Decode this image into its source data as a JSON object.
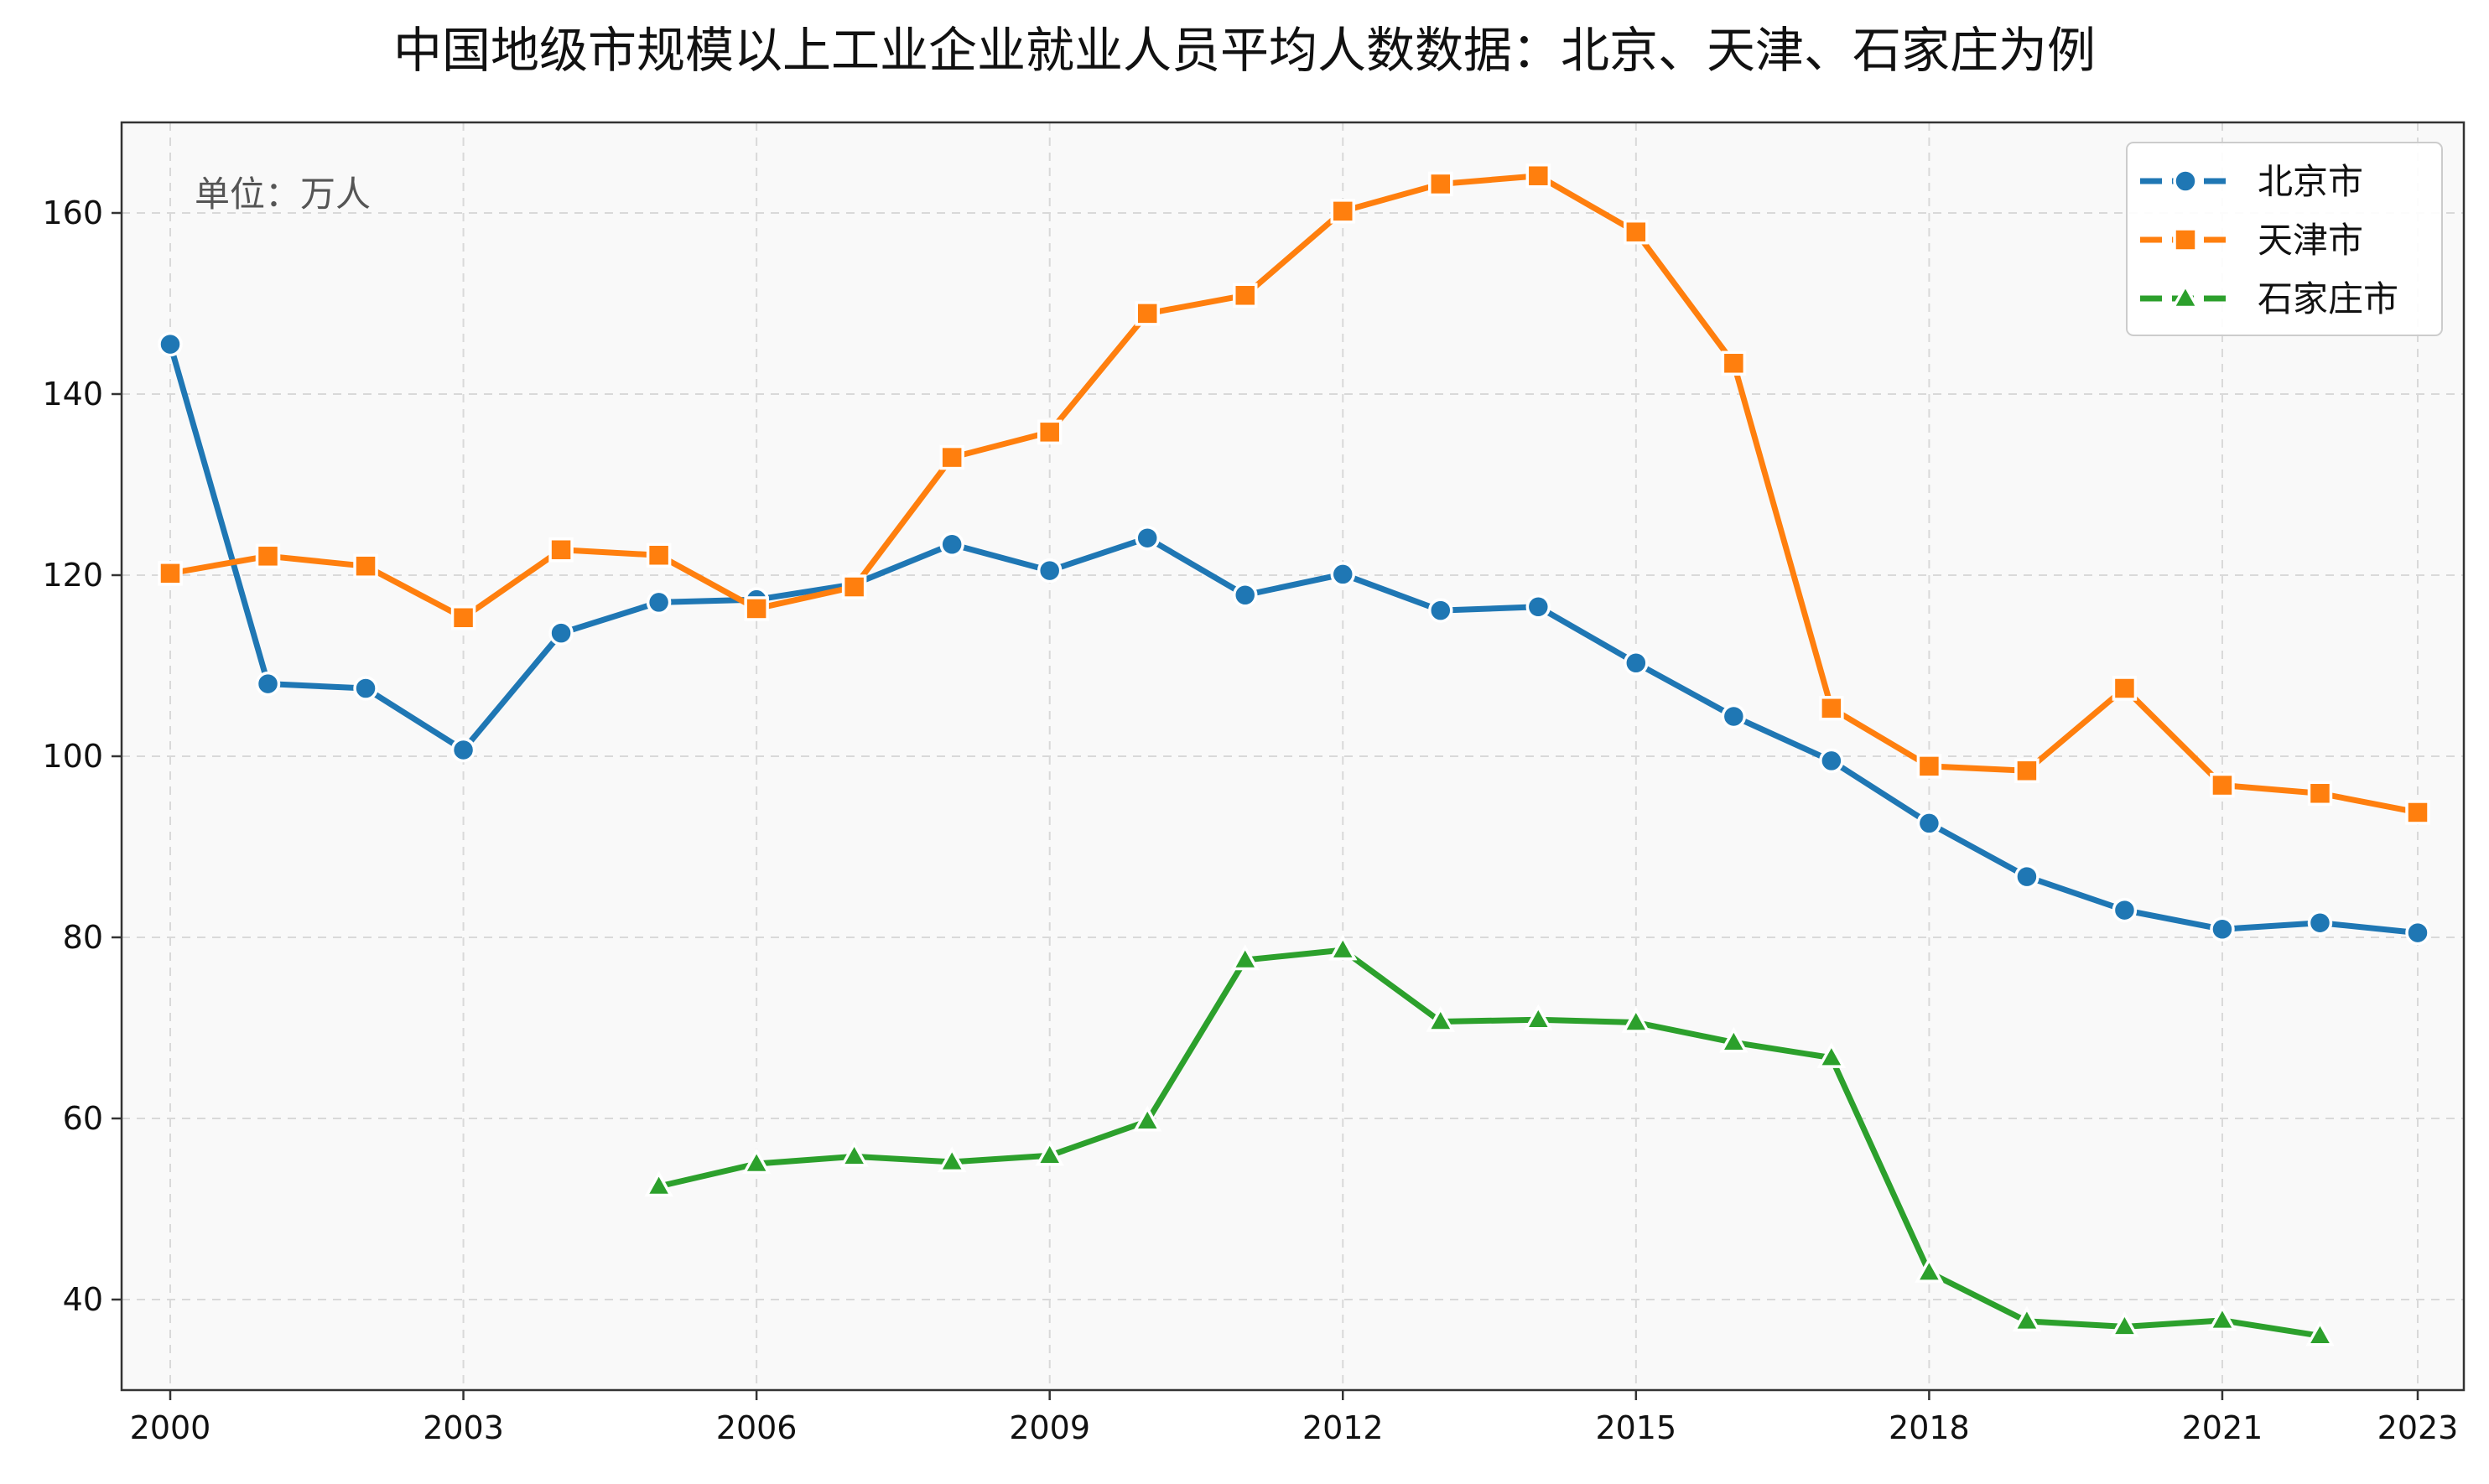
{
  "chart_data": {
    "type": "line",
    "title": "中国地级市规模以上工业企业就业人员平均人数数据：北京、天津、石家庄为例",
    "unit_note": "单位：万人",
    "xlabel": "",
    "ylabel": "",
    "xlim": [
      2000,
      2023
    ],
    "ylim": [
      30,
      170
    ],
    "x_ticks": [
      2000,
      2003,
      2006,
      2009,
      2012,
      2015,
      2018,
      2021,
      2023
    ],
    "y_ticks": [
      40,
      60,
      80,
      100,
      120,
      140,
      160
    ],
    "grid": true,
    "legend_position": "top-right",
    "series": [
      {
        "name": "北京市",
        "color": "#1f77b4",
        "marker": "circle",
        "x": [
          2000,
          2001,
          2002,
          2003,
          2004,
          2005,
          2006,
          2007,
          2008,
          2009,
          2010,
          2011,
          2012,
          2013,
          2014,
          2015,
          2016,
          2017,
          2018,
          2019,
          2020,
          2021,
          2022,
          2023
        ],
        "values": [
          145.5,
          108.0,
          107.5,
          100.7,
          113.6,
          117.0,
          117.3,
          119.0,
          123.4,
          120.5,
          124.1,
          117.8,
          120.1,
          116.1,
          116.5,
          110.3,
          104.4,
          99.5,
          92.6,
          86.7,
          83.0,
          80.9,
          81.6,
          80.5
        ]
      },
      {
        "name": "天津市",
        "color": "#ff7f0e",
        "marker": "square",
        "x": [
          2000,
          2001,
          2002,
          2003,
          2004,
          2005,
          2006,
          2007,
          2008,
          2009,
          2010,
          2011,
          2012,
          2013,
          2014,
          2015,
          2016,
          2017,
          2018,
          2019,
          2020,
          2021,
          2022,
          2023
        ],
        "values": [
          120.2,
          122.1,
          121.0,
          115.3,
          122.8,
          122.2,
          116.3,
          118.7,
          133.0,
          135.8,
          148.9,
          150.9,
          160.2,
          163.2,
          164.1,
          157.9,
          143.4,
          105.3,
          98.9,
          98.4,
          107.5,
          96.8,
          95.9,
          93.8
        ]
      },
      {
        "name": "石家庄市",
        "color": "#2ca02c",
        "marker": "triangle",
        "x": [
          2005,
          2006,
          2007,
          2008,
          2009,
          2010,
          2011,
          2012,
          2013,
          2014,
          2015,
          2016,
          2017,
          2018,
          2019,
          2020,
          2021,
          2022
        ],
        "values": [
          52.5,
          55.0,
          55.8,
          55.2,
          55.9,
          59.7,
          77.5,
          78.6,
          70.7,
          70.9,
          70.6,
          68.4,
          66.7,
          43.0,
          37.6,
          37.0,
          37.7,
          36.0
        ]
      }
    ]
  }
}
